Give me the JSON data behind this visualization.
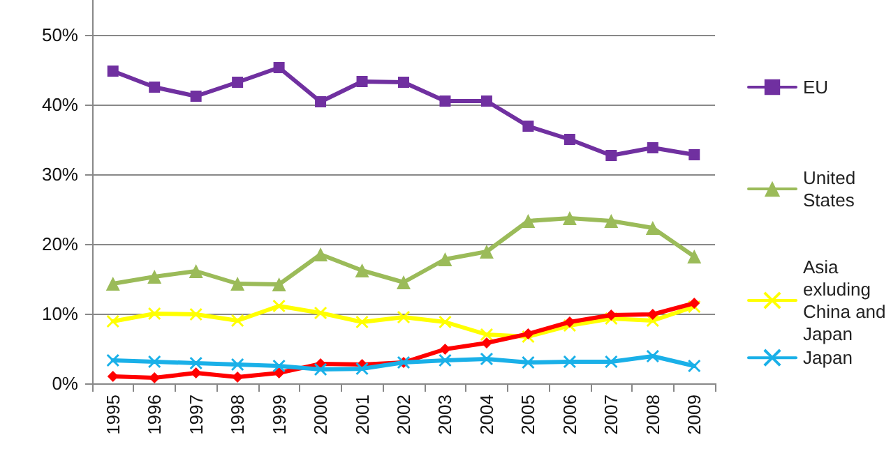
{
  "chart_data": {
    "type": "line",
    "categories": [
      "1995",
      "1996",
      "1997",
      "1998",
      "1999",
      "2000",
      "2001",
      "2002",
      "2003",
      "2004",
      "2005",
      "2006",
      "2007",
      "2008",
      "2009"
    ],
    "ylim": [
      0,
      55
    ],
    "yticks": [
      {
        "value": 0,
        "label": "0%"
      },
      {
        "value": 10,
        "label": "10%"
      },
      {
        "value": 20,
        "label": "20%"
      },
      {
        "value": 30,
        "label": "30%"
      },
      {
        "value": 40,
        "label": "40%"
      },
      {
        "value": 50,
        "label": "50%"
      }
    ],
    "grid": "y",
    "legend": "right",
    "line_style": "solid",
    "series": [
      {
        "name": "EU",
        "color": "#7030a0",
        "marker": "square",
        "values": [
          44.8,
          42.5,
          41.2,
          43.2,
          45.3,
          40.4,
          43.3,
          43.2,
          40.5,
          40.5,
          36.9,
          35.0,
          32.7,
          33.8,
          32.8
        ]
      },
      {
        "name": "United States",
        "color": "#9bbb59",
        "marker": "triangle",
        "values": [
          14.3,
          15.3,
          16.1,
          14.3,
          14.2,
          18.5,
          16.2,
          14.5,
          17.8,
          18.9,
          23.3,
          23.7,
          23.3,
          22.3,
          18.2
        ]
      },
      {
        "name": "Asia exluding China and Japan",
        "color": "#ffff00",
        "marker": "cross",
        "values": [
          8.9,
          10.0,
          9.9,
          9.0,
          11.1,
          10.1,
          8.8,
          9.5,
          8.8,
          7.0,
          6.7,
          8.3,
          9.3,
          9.0,
          11.0
        ]
      },
      {
        "color": "#ff0000",
        "marker": "diamond",
        "values": [
          1.0,
          0.8,
          1.5,
          0.9,
          1.5,
          2.8,
          2.7,
          3.0,
          4.9,
          5.8,
          7.1,
          8.8,
          9.8,
          9.9,
          11.5
        ]
      },
      {
        "name": "Japan",
        "color": "#1ab0e8",
        "marker": "cross",
        "values": [
          3.3,
          3.1,
          2.9,
          2.7,
          2.5,
          2.0,
          2.1,
          3.0,
          3.3,
          3.5,
          3.0,
          3.1,
          3.1,
          3.9,
          2.5
        ]
      }
    ]
  }
}
